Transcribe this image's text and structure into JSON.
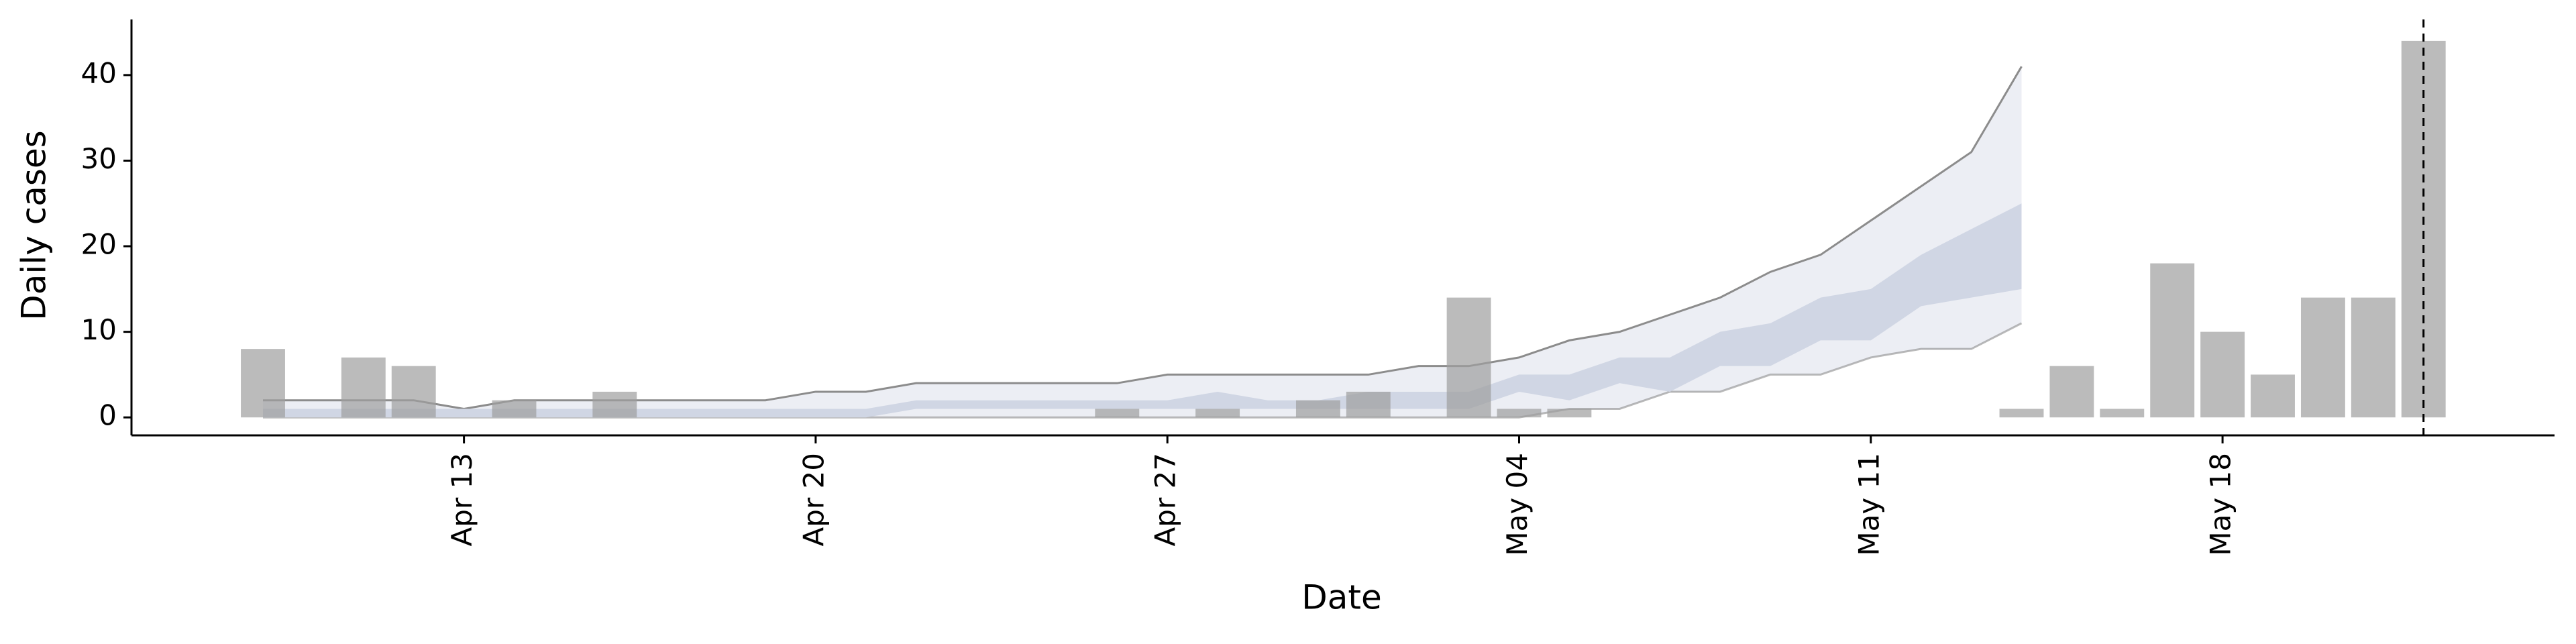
{
  "chart_data": {
    "type": "bar",
    "x_label": "Date",
    "y_label": "Daily cases",
    "categories": [
      null,
      null,
      null,
      null,
      "Apr 13",
      null,
      null,
      null,
      null,
      null,
      null,
      "Apr 20",
      null,
      null,
      null,
      null,
      null,
      null,
      "Apr 27",
      null,
      null,
      null,
      null,
      null,
      null,
      "May 04",
      null,
      null,
      null,
      null,
      null,
      null,
      "May 11",
      null,
      null,
      null,
      null,
      null,
      null,
      "May 18",
      null,
      null,
      null,
      null
    ],
    "values": [
      8,
      0,
      7,
      6,
      0,
      2,
      0,
      3,
      0,
      0,
      0,
      0,
      0,
      0,
      0,
      0,
      0,
      1,
      0,
      1,
      0,
      2,
      3,
      0,
      14,
      1,
      1,
      0,
      0,
      0,
      0,
      0,
      0,
      0,
      0,
      1,
      6,
      1,
      18,
      10,
      5,
      14,
      14,
      44
    ],
    "color": "#9e9e9e",
    "series": [
      {
        "type": "band",
        "color": "#eceef4",
        "line_color": "#8c8c8c",
        "upper": [
          2,
          2,
          2,
          2,
          1,
          2,
          2,
          2,
          2,
          2,
          2,
          3,
          3,
          4,
          4,
          4,
          4,
          4,
          5,
          5,
          5,
          5,
          5,
          6,
          6,
          7,
          9,
          10,
          12,
          14,
          17,
          19,
          23,
          27,
          31,
          41,
          null,
          null,
          null,
          null,
          null,
          null,
          null,
          null
        ],
        "lower": [
          0,
          0,
          0,
          0,
          0,
          0,
          0,
          0,
          0,
          0,
          0,
          0,
          0,
          0,
          0,
          0,
          0,
          0,
          0,
          0,
          0,
          0,
          0,
          0,
          0,
          0,
          1,
          1,
          3,
          3,
          5,
          5,
          7,
          8,
          8,
          11,
          null,
          null,
          null,
          null,
          null,
          null,
          null,
          null
        ]
      },
      {
        "type": "band",
        "color": "#d0d6e4",
        "line_color": null,
        "upper": [
          1,
          1,
          1,
          1,
          1,
          1,
          1,
          1,
          1,
          1,
          1,
          1,
          1,
          2,
          2,
          2,
          2,
          2,
          2,
          3,
          2,
          2,
          3,
          3,
          3,
          5,
          5,
          7,
          7,
          10,
          11,
          14,
          15,
          19,
          22,
          25,
          null,
          null,
          null,
          null,
          null,
          null,
          null,
          null
        ],
        "lower": [
          0,
          0,
          0,
          0,
          0,
          0,
          0,
          0,
          0,
          0,
          0,
          0,
          0,
          1,
          1,
          1,
          1,
          1,
          1,
          1,
          1,
          1,
          1,
          1,
          1,
          3,
          2,
          4,
          3,
          6,
          6,
          9,
          9,
          13,
          14,
          15,
          null,
          null,
          null,
          null,
          null,
          null,
          null,
          null
        ]
      }
    ],
    "vline_category_index": 43,
    "ylim": [
      -2.1,
      46.5
    ],
    "yticks": [
      0,
      10,
      20,
      30,
      40
    ]
  }
}
